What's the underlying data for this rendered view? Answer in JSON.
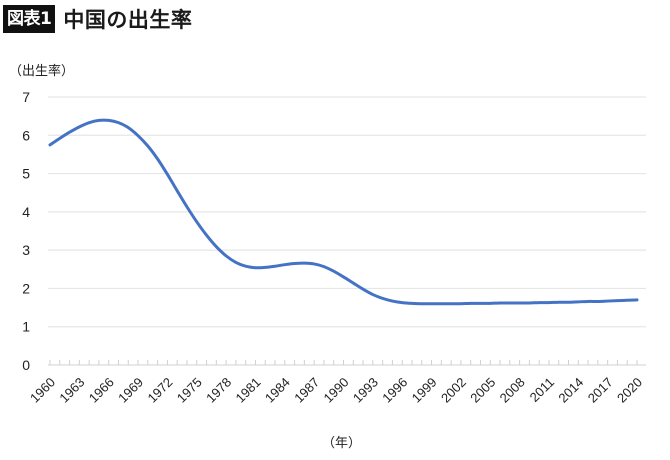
{
  "header": {
    "badge": "図表1",
    "title": "中国の出生率"
  },
  "axes": {
    "y_label": "（出生率）",
    "x_label": "（年）"
  },
  "colors": {
    "line": "#4472C4",
    "grid": "#e6e6e6",
    "badge_bg": "#111111"
  },
  "chart_data": {
    "type": "line",
    "title": "中国の出生率",
    "xlabel": "（年）",
    "ylabel": "（出生率）",
    "ylim": [
      0,
      7
    ],
    "yticks": [
      0,
      1,
      2,
      3,
      4,
      5,
      6,
      7
    ],
    "grid": true,
    "legend": null,
    "x_tick_labels": [
      "1960",
      "1963",
      "1966",
      "1969",
      "1972",
      "1975",
      "1978",
      "1981",
      "1984",
      "1987",
      "1990",
      "1993",
      "1996",
      "1999",
      "2002",
      "2005",
      "2008",
      "2011",
      "2014",
      "2017",
      "2020"
    ],
    "x": [
      1960,
      1961,
      1962,
      1963,
      1964,
      1965,
      1966,
      1967,
      1968,
      1969,
      1970,
      1971,
      1972,
      1973,
      1974,
      1975,
      1976,
      1977,
      1978,
      1979,
      1980,
      1981,
      1982,
      1983,
      1984,
      1985,
      1986,
      1987,
      1988,
      1989,
      1990,
      1991,
      1992,
      1993,
      1994,
      1995,
      1996,
      1997,
      1998,
      1999,
      2000,
      2001,
      2002,
      2003,
      2004,
      2005,
      2006,
      2007,
      2008,
      2009,
      2010,
      2011,
      2012,
      2013,
      2014,
      2015,
      2016,
      2017,
      2018,
      2019,
      2020
    ],
    "series": [
      {
        "name": "出生率",
        "values": [
          5.75,
          5.92,
          6.08,
          6.22,
          6.33,
          6.39,
          6.39,
          6.33,
          6.2,
          5.99,
          5.72,
          5.38,
          4.98,
          4.55,
          4.13,
          3.74,
          3.39,
          3.09,
          2.85,
          2.68,
          2.58,
          2.54,
          2.55,
          2.58,
          2.62,
          2.65,
          2.66,
          2.64,
          2.57,
          2.45,
          2.3,
          2.14,
          1.98,
          1.84,
          1.74,
          1.67,
          1.63,
          1.61,
          1.6,
          1.6,
          1.6,
          1.6,
          1.6,
          1.61,
          1.61,
          1.61,
          1.62,
          1.62,
          1.62,
          1.62,
          1.63,
          1.63,
          1.64,
          1.64,
          1.65,
          1.66,
          1.66,
          1.67,
          1.68,
          1.69,
          1.7
        ]
      }
    ]
  }
}
